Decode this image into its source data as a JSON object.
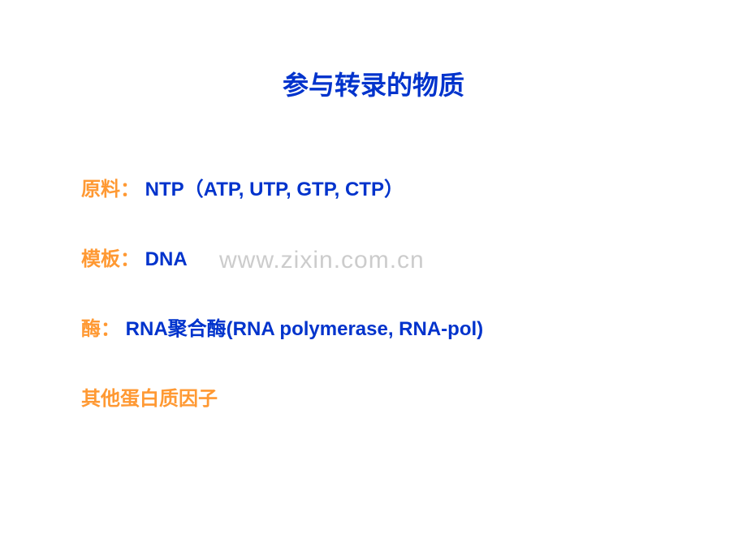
{
  "slide": {
    "title": "参与转录的物质",
    "lines": [
      {
        "label": "原料：",
        "value": " NTP（ATP, UTP, GTP, CTP）"
      },
      {
        "label": "模板：",
        "value": " DNA"
      },
      {
        "label": "酶：",
        "value": " RNA聚合酶(RNA polymerase, RNA-pol)"
      },
      {
        "label": "其他蛋白质因子",
        "value": ""
      }
    ]
  },
  "watermark": "www.zixin.com.cn",
  "colors": {
    "title": "#0033cc",
    "label": "#ff9933",
    "value": "#0033cc",
    "watermark": "#cccccc",
    "background": "#ffffff"
  },
  "typography": {
    "title_fontsize": 32,
    "content_fontsize": 24,
    "watermark_fontsize": 30
  }
}
